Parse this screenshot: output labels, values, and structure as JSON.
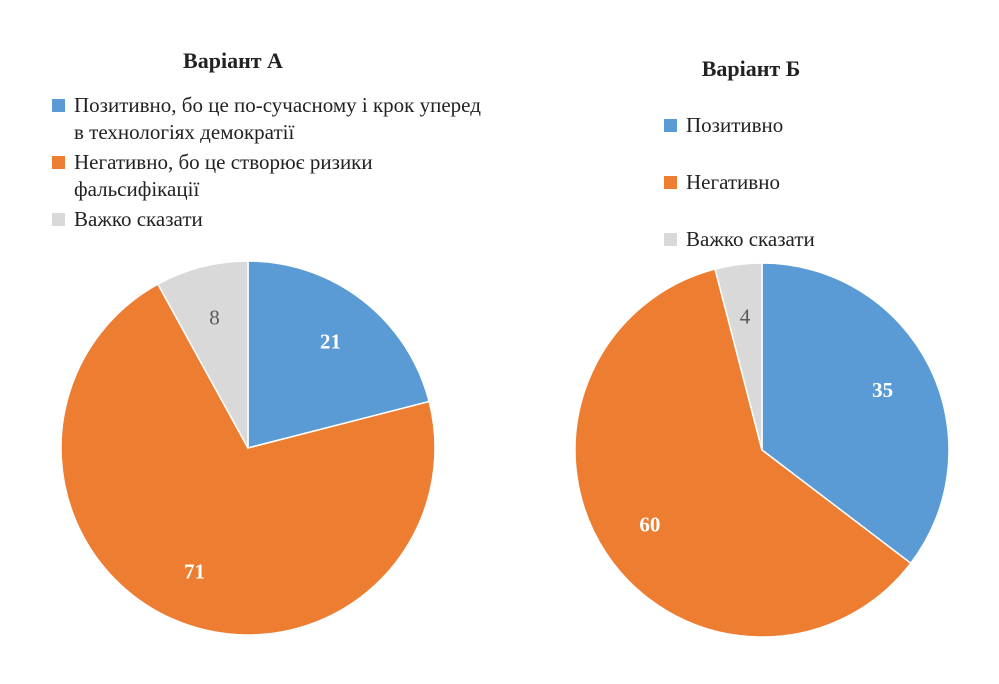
{
  "chart_data": [
    {
      "type": "pie",
      "title": "Варіант А",
      "categories": [
        "Позитивно, бо це по-сучасному і крок уперед в технологіях демократії",
        "Негативно, бо це створює ризики фальсифікації",
        "Важко сказати"
      ],
      "values": [
        21,
        71,
        8
      ],
      "colors": [
        "#5b9bd5",
        "#ed7d31",
        "#d9d9d9"
      ],
      "label_colors": [
        "#ffffff",
        "#ffffff",
        "#595959"
      ],
      "label_bold": [
        true,
        true,
        false
      ],
      "legend_position": "top"
    },
    {
      "type": "pie",
      "title": "Варіант Б",
      "categories": [
        "Позитивно",
        "Негативно",
        "Важко сказати"
      ],
      "values": [
        35,
        60,
        4
      ],
      "colors": [
        "#5b9bd5",
        "#ed7d31",
        "#d9d9d9"
      ],
      "label_colors": [
        "#ffffff",
        "#ffffff",
        "#595959"
      ],
      "label_bold": [
        true,
        true,
        false
      ],
      "legend_position": "top"
    }
  ]
}
